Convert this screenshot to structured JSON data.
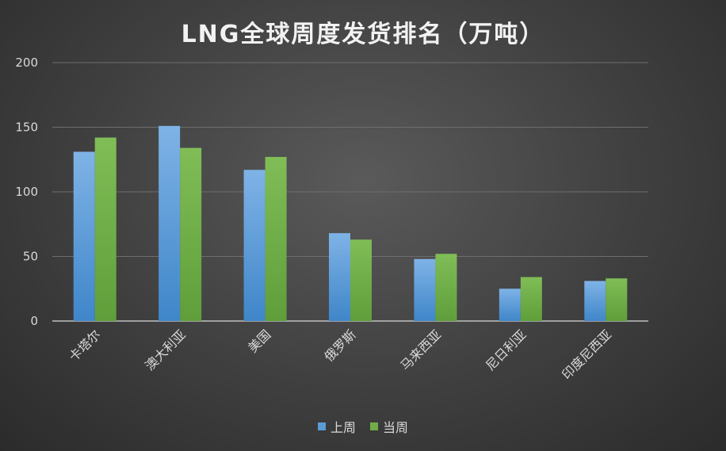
{
  "chart_data": {
    "type": "bar",
    "title": "LNG全球周度发货排名（万吨）",
    "categories": [
      "卡塔尔",
      "澳大利亚",
      "美国",
      "俄罗斯",
      "马来西亚",
      "尼日利亚",
      "印度尼西亚"
    ],
    "series": [
      {
        "name": "上周",
        "values": [
          131,
          151,
          117,
          68,
          48,
          25,
          31
        ],
        "color": "#5b9bd5"
      },
      {
        "name": "当周",
        "values": [
          142,
          134,
          127,
          63,
          52,
          34,
          33
        ],
        "color": "#70ad47"
      }
    ],
    "ylim": [
      0,
      200
    ],
    "yticks": [
      "0",
      "50",
      "100",
      "150",
      "200"
    ],
    "grid": true,
    "legend_position": "bottom"
  }
}
